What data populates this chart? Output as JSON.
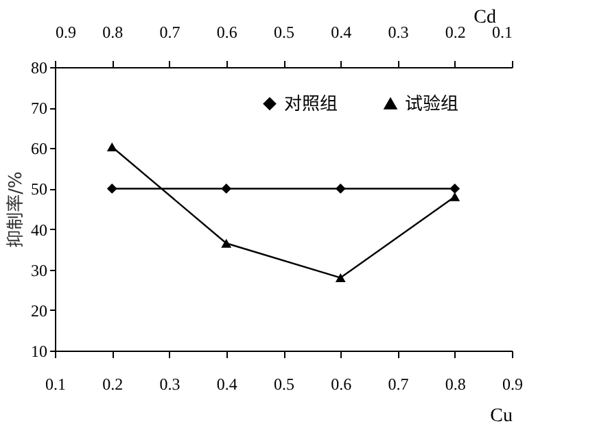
{
  "chart_data": {
    "type": "line",
    "x": [
      0.2,
      0.4,
      0.6,
      0.8
    ],
    "xlabel": "Cu",
    "ylabel": "抑制率/%",
    "x2label": "Cd",
    "xlim": [
      0.1,
      0.9
    ],
    "xticks": [
      0.1,
      0.2,
      0.3,
      0.4,
      0.5,
      0.6,
      0.7,
      0.8,
      0.9
    ],
    "x2lim": [
      0.9,
      0.1
    ],
    "x2ticks": [
      0.9,
      0.8,
      0.7,
      0.6,
      0.5,
      0.4,
      0.3,
      0.2,
      0.1
    ],
    "ylim": [
      10,
      80
    ],
    "yticks": [
      10,
      20,
      30,
      40,
      50,
      60,
      70,
      80
    ],
    "series": [
      {
        "name": "对照组",
        "color": "#000000",
        "marker": "diamond",
        "values": [
          50,
          50,
          50,
          50
        ]
      },
      {
        "name": "试验组",
        "color": "#000000",
        "marker": "triangle",
        "values": [
          60.3,
          36.5,
          28,
          48
        ]
      }
    ],
    "grid": false,
    "legend": "top right",
    "line_style": "solid"
  }
}
